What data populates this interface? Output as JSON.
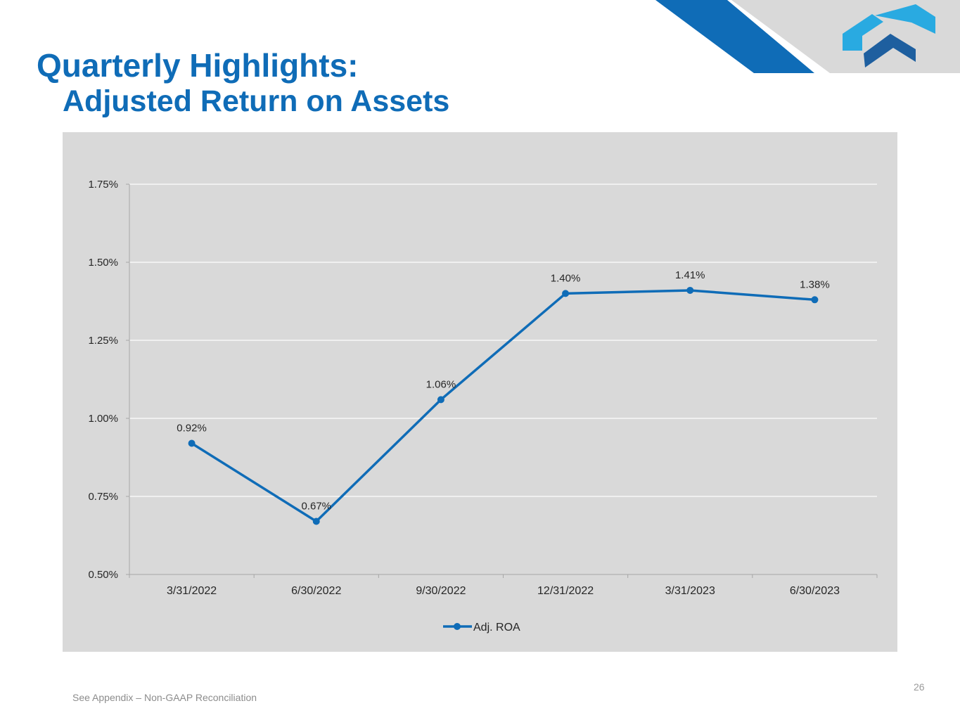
{
  "slide": {
    "title": "Quarterly Highlights:",
    "subtitle": "Adjusted Return on Assets",
    "footnote": "See Appendix – Non-GAAP Reconciliation",
    "page_number": "26"
  },
  "colors": {
    "brand_blue": "#0f6cb7",
    "accent_light_blue": "#29aae1",
    "logo_dark_blue": "#1e5f9f",
    "panel_gray": "#d9d9d9"
  },
  "chart_data": {
    "type": "line",
    "title": "",
    "xlabel": "",
    "ylabel": "",
    "categories": [
      "3/31/2022",
      "6/30/2022",
      "9/30/2022",
      "12/31/2022",
      "3/31/2023",
      "6/30/2023"
    ],
    "series": [
      {
        "name": "Adj. ROA",
        "values": [
          0.92,
          0.67,
          1.06,
          1.4,
          1.41,
          1.38
        ],
        "labels": [
          "0.92%",
          "0.67%",
          "1.06%",
          "1.40%",
          "1.41%",
          "1.38%"
        ],
        "color": "#0f6cb7"
      }
    ],
    "ylim": [
      0.5,
      1.75
    ],
    "yticks": [
      0.5,
      0.75,
      1.0,
      1.25,
      1.5,
      1.75
    ],
    "ytick_labels": [
      "0.50%",
      "0.75%",
      "1.00%",
      "1.25%",
      "1.50%",
      "1.75%"
    ],
    "grid": true,
    "legend": "bottom-center"
  }
}
